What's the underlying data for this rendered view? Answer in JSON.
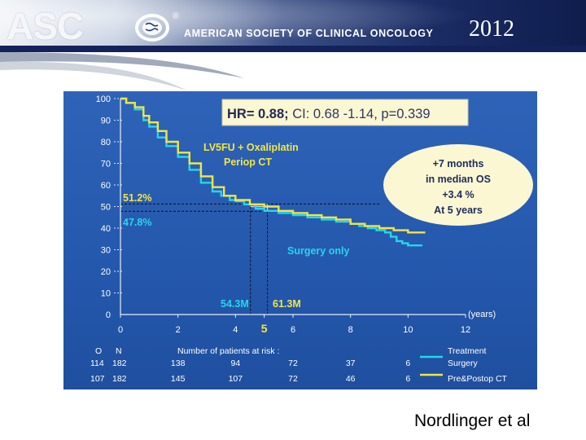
{
  "header": {
    "logo_text": "ASC",
    "registered_mark": "®",
    "org_name": "AMERICAN SOCIETY OF CLINICAL ONCOLOGY",
    "year": "2012"
  },
  "citation": "Nordlinger et al",
  "colors": {
    "surgery": "#26d6ea",
    "periop": "#f2e641",
    "panel": "#2a5cb0",
    "callout": "#fbf7d2"
  },
  "chart_data": {
    "type": "line",
    "title": "HR= 0.88; CI: 0.68 -1.14, p=0.339",
    "title_parts": {
      "hr": "HR= 0.88;",
      "rest": " CI: 0.68 -1.14, p=0.339"
    },
    "xlabel": "(years)",
    "xlim": [
      0,
      12
    ],
    "ylim": [
      0,
      100
    ],
    "x_ticks": [
      "0",
      "2",
      "4",
      "5",
      "6",
      "8",
      "10",
      "12"
    ],
    "x_tick_values": [
      0,
      2,
      4,
      5,
      6,
      8,
      10,
      12
    ],
    "y_ticks": [
      "0",
      "10",
      "20",
      "30",
      "40",
      "50",
      "60",
      "70",
      "80",
      "90",
      "100"
    ],
    "y_tick_values": [
      0,
      10,
      20,
      30,
      40,
      50,
      60,
      70,
      80,
      90,
      100
    ],
    "series": [
      {
        "name": "LV5FU + Oxaliplatin Periop CT",
        "label_line1": "LV5FU + Oxaliplatin",
        "label_line2": "Periop CT",
        "color_key": "periop",
        "points": [
          [
            0,
            100
          ],
          [
            0.2,
            98
          ],
          [
            0.5,
            96
          ],
          [
            0.8,
            92
          ],
          [
            1,
            89
          ],
          [
            1.3,
            85
          ],
          [
            1.6,
            80
          ],
          [
            2,
            75
          ],
          [
            2.4,
            70
          ],
          [
            2.8,
            64
          ],
          [
            3.2,
            59
          ],
          [
            3.6,
            55
          ],
          [
            4,
            53
          ],
          [
            4.5,
            51
          ],
          [
            5,
            50
          ],
          [
            5.5,
            48
          ],
          [
            6,
            47
          ],
          [
            6.5,
            46
          ],
          [
            7,
            45
          ],
          [
            7.5,
            44
          ],
          [
            8,
            42
          ],
          [
            8.5,
            41
          ],
          [
            9,
            40
          ],
          [
            9.5,
            39
          ],
          [
            10,
            38
          ],
          [
            10.6,
            38
          ]
        ]
      },
      {
        "name": "Surgery only",
        "label_line1": "Surgery only",
        "color_key": "surgery",
        "points": [
          [
            0,
            100
          ],
          [
            0.2,
            98
          ],
          [
            0.5,
            95
          ],
          [
            0.8,
            90
          ],
          [
            1,
            87
          ],
          [
            1.3,
            82
          ],
          [
            1.6,
            78
          ],
          [
            2,
            73
          ],
          [
            2.4,
            67
          ],
          [
            2.8,
            61
          ],
          [
            3.2,
            57
          ],
          [
            3.5,
            55
          ],
          [
            3.8,
            53
          ],
          [
            4,
            52.5
          ],
          [
            4.3,
            51
          ],
          [
            4.7,
            49
          ],
          [
            5,
            48
          ],
          [
            5.5,
            47
          ],
          [
            6,
            46
          ],
          [
            6.5,
            45
          ],
          [
            7,
            44
          ],
          [
            7.5,
            43
          ],
          [
            8,
            42
          ],
          [
            8.3,
            41
          ],
          [
            8.6,
            40
          ],
          [
            8.9,
            39
          ],
          [
            9.2,
            38
          ],
          [
            9.4,
            36
          ],
          [
            9.6,
            34
          ],
          [
            9.8,
            33
          ],
          [
            10,
            32
          ],
          [
            10.5,
            32
          ]
        ]
      }
    ],
    "reference_values": {
      "rate_a": 51.2,
      "rate_b": 47.8,
      "median_a_months": 54.3,
      "median_b_months": 61.3,
      "median_a_years": 4.52,
      "median_b_years": 5.11
    },
    "annotations": {
      "rate_a": "51.2%",
      "rate_b": "47.8%",
      "median_a": "54.3M",
      "median_b": "61.3M",
      "callout": [
        "+7 months",
        "in median OS",
        "+3.4 %",
        "At 5 years"
      ]
    },
    "risk_table": {
      "title": "Number of patients at risk :",
      "col_o": "O",
      "col_n": "N",
      "col_treatment": "Treatment",
      "rows": [
        {
          "o": "114",
          "n": "182",
          "counts": [
            "138",
            "94",
            "72",
            "37",
            "6"
          ],
          "treatment": "Surgery",
          "color_key": "surgery"
        },
        {
          "o": "107",
          "n": "182",
          "counts": [
            "145",
            "107",
            "72",
            "46",
            "6"
          ],
          "treatment": "Pre&Postop CT",
          "color_key": "periop"
        }
      ],
      "count_x_values": [
        2,
        4,
        6,
        8,
        10
      ]
    }
  }
}
